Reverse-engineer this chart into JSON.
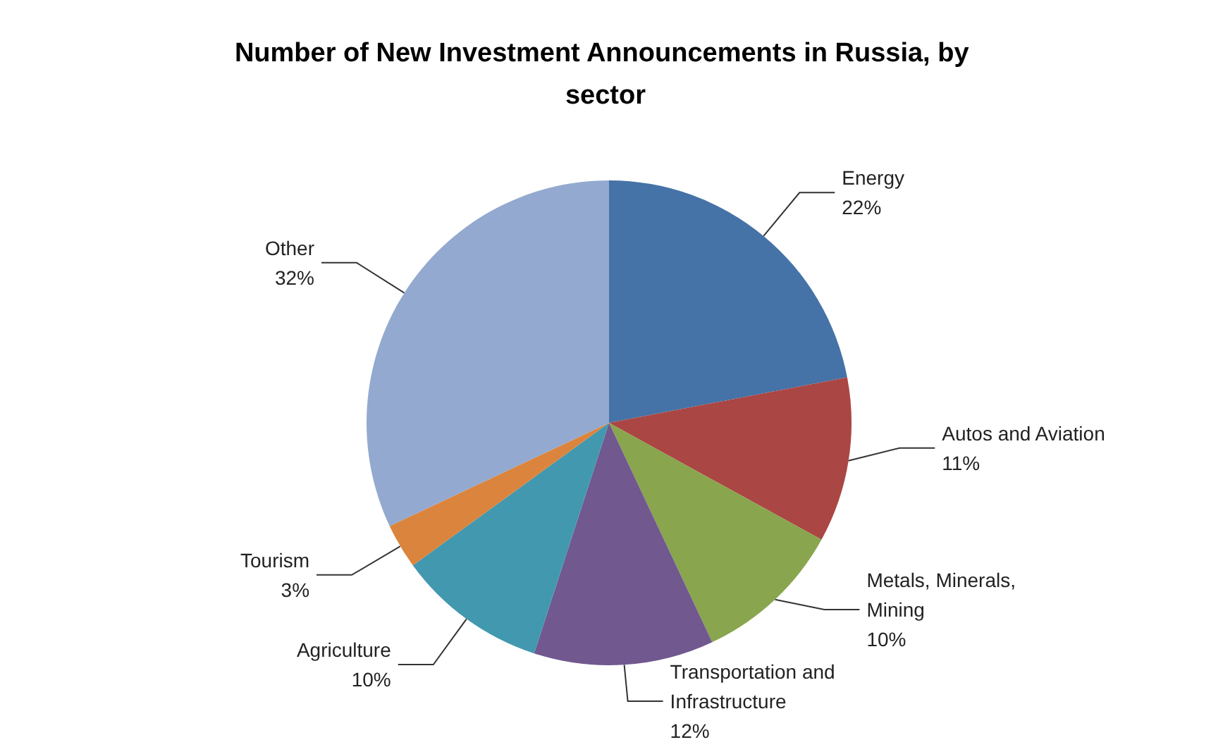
{
  "chart_data": {
    "type": "pie",
    "title": "Number of New Investment Announcements in Russia, by sector",
    "categories": [
      "Energy",
      "Autos and Aviation",
      "Metals, Minerals, Mining",
      "Transportation and Infrastructure",
      "Agriculture",
      "Tourism",
      "Other"
    ],
    "values": [
      22,
      11,
      10,
      12,
      10,
      3,
      32
    ],
    "value_labels": [
      "22%",
      "11%",
      "10%",
      "12%",
      "10%",
      "3%",
      "32%"
    ],
    "colors": [
      "#4572a7",
      "#aa4643",
      "#89a54e",
      "#71588f",
      "#4198af",
      "#db843d",
      "#93a9cf"
    ],
    "legend": false
  }
}
